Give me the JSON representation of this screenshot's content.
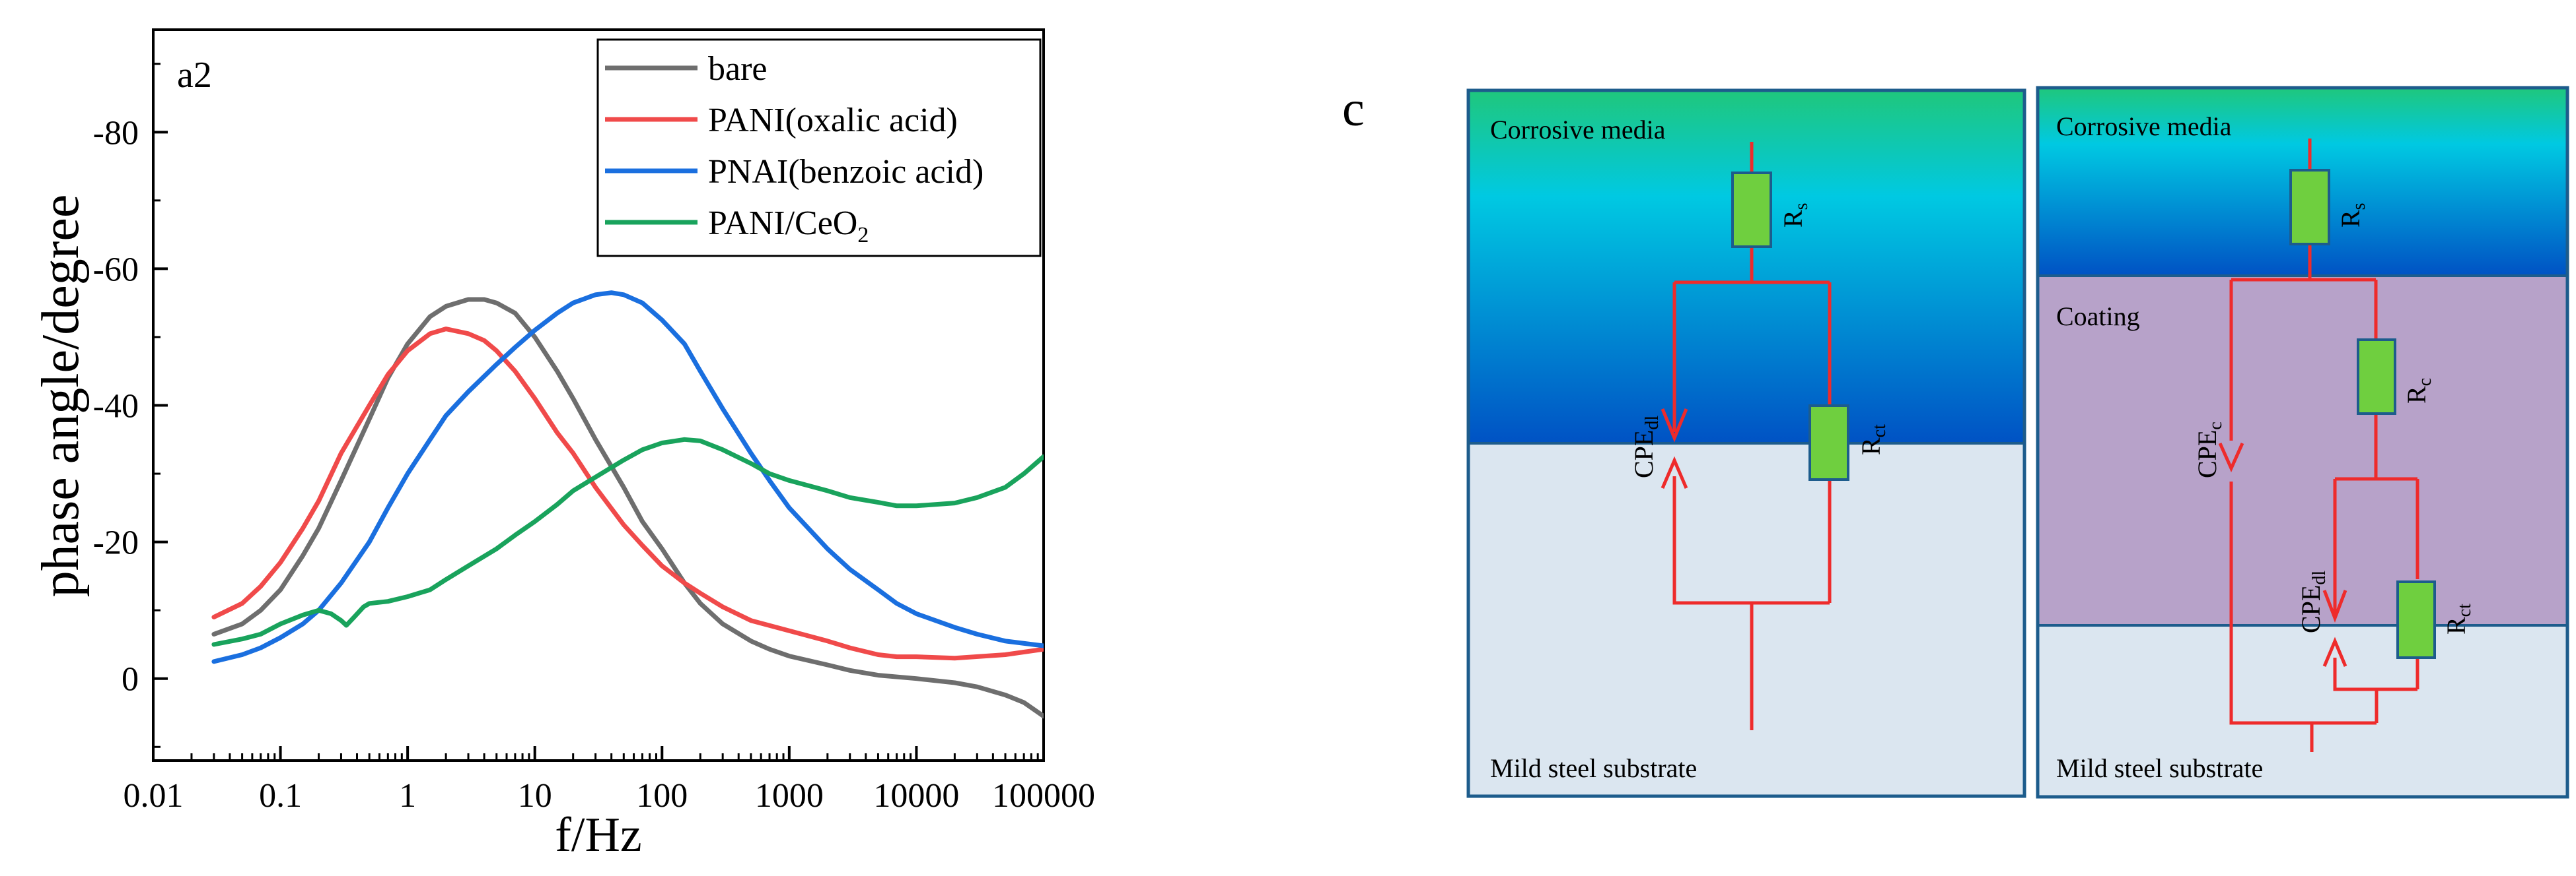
{
  "chart_data": {
    "type": "line",
    "panel_label": "a2",
    "xlabel": "f/Hz",
    "ylabel": "phase angle/degree",
    "xscale": "log",
    "xlim": [
      0.01,
      100000
    ],
    "ylim": [
      12,
      -95
    ],
    "x_ticks": [
      0.01,
      0.1,
      1,
      10,
      100,
      1000,
      10000,
      100000
    ],
    "x_tick_labels": [
      "0.01",
      "0.1",
      "1",
      "10",
      "100",
      "1000",
      "10000",
      "100000"
    ],
    "y_ticks": [
      0,
      -20,
      -40,
      -60,
      -80
    ],
    "y_tick_labels": [
      "0",
      "-20",
      "-40",
      "-60",
      "-80"
    ],
    "legend_position": "top-right",
    "series": [
      {
        "name": "bare",
        "color": "#6e6e6e",
        "points": [
          [
            0.03,
            -6.5
          ],
          [
            0.05,
            -8
          ],
          [
            0.07,
            -10
          ],
          [
            0.1,
            -13
          ],
          [
            0.15,
            -18
          ],
          [
            0.2,
            -22
          ],
          [
            0.3,
            -29
          ],
          [
            0.5,
            -38
          ],
          [
            0.7,
            -44
          ],
          [
            1,
            -49
          ],
          [
            1.5,
            -53
          ],
          [
            2,
            -54.5
          ],
          [
            3,
            -55.5
          ],
          [
            4,
            -55.5
          ],
          [
            5,
            -55
          ],
          [
            7,
            -53.5
          ],
          [
            10,
            -50
          ],
          [
            15,
            -45
          ],
          [
            20,
            -41
          ],
          [
            30,
            -35
          ],
          [
            50,
            -28
          ],
          [
            70,
            -23
          ],
          [
            100,
            -19
          ],
          [
            150,
            -14
          ],
          [
            200,
            -11
          ],
          [
            300,
            -8
          ],
          [
            500,
            -5.5
          ],
          [
            700,
            -4.3
          ],
          [
            1000,
            -3.3
          ],
          [
            2000,
            -2
          ],
          [
            3000,
            -1.2
          ],
          [
            5000,
            -0.5
          ],
          [
            10000,
            0
          ],
          [
            20000,
            0.6
          ],
          [
            30000,
            1.2
          ],
          [
            50000,
            2.4
          ],
          [
            70000,
            3.5
          ],
          [
            100000,
            5.5
          ]
        ]
      },
      {
        "name": "PANI(oxalic acid)",
        "color": "#f04a4a",
        "points": [
          [
            0.03,
            -9
          ],
          [
            0.05,
            -11
          ],
          [
            0.07,
            -13.5
          ],
          [
            0.1,
            -17
          ],
          [
            0.15,
            -22
          ],
          [
            0.2,
            -26
          ],
          [
            0.3,
            -33
          ],
          [
            0.5,
            -40
          ],
          [
            0.7,
            -44.5
          ],
          [
            1,
            -48
          ],
          [
            1.5,
            -50.5
          ],
          [
            2,
            -51.2
          ],
          [
            3,
            -50.5
          ],
          [
            4,
            -49.5
          ],
          [
            5,
            -48
          ],
          [
            7,
            -45
          ],
          [
            10,
            -41
          ],
          [
            15,
            -36
          ],
          [
            20,
            -33
          ],
          [
            30,
            -28
          ],
          [
            50,
            -22.5
          ],
          [
            70,
            -19.5
          ],
          [
            100,
            -16.5
          ],
          [
            150,
            -14
          ],
          [
            200,
            -12.5
          ],
          [
            300,
            -10.5
          ],
          [
            500,
            -8.5
          ],
          [
            1000,
            -7
          ],
          [
            2000,
            -5.5
          ],
          [
            3000,
            -4.5
          ],
          [
            5000,
            -3.5
          ],
          [
            7000,
            -3.2
          ],
          [
            10000,
            -3.2
          ],
          [
            20000,
            -3
          ],
          [
            50000,
            -3.5
          ],
          [
            100000,
            -4.3
          ]
        ]
      },
      {
        "name": "PNAI(benzoic acid)",
        "color": "#1a6fdf",
        "points": [
          [
            0.03,
            -2.5
          ],
          [
            0.05,
            -3.5
          ],
          [
            0.07,
            -4.5
          ],
          [
            0.1,
            -6
          ],
          [
            0.15,
            -8
          ],
          [
            0.2,
            -10
          ],
          [
            0.3,
            -14
          ],
          [
            0.5,
            -20
          ],
          [
            0.7,
            -25
          ],
          [
            1,
            -30
          ],
          [
            1.5,
            -35
          ],
          [
            2,
            -38.5
          ],
          [
            3,
            -42
          ],
          [
            5,
            -46
          ],
          [
            7,
            -48.5
          ],
          [
            10,
            -51
          ],
          [
            15,
            -53.5
          ],
          [
            20,
            -55
          ],
          [
            30,
            -56.2
          ],
          [
            40,
            -56.5
          ],
          [
            50,
            -56.2
          ],
          [
            70,
            -55
          ],
          [
            100,
            -52.5
          ],
          [
            150,
            -49
          ],
          [
            200,
            -45
          ],
          [
            300,
            -39.5
          ],
          [
            500,
            -33
          ],
          [
            700,
            -29
          ],
          [
            1000,
            -25
          ],
          [
            2000,
            -19
          ],
          [
            3000,
            -16
          ],
          [
            5000,
            -13
          ],
          [
            7000,
            -11
          ],
          [
            10000,
            -9.5
          ],
          [
            20000,
            -7.5
          ],
          [
            30000,
            -6.5
          ],
          [
            50000,
            -5.5
          ],
          [
            100000,
            -4.8
          ]
        ]
      },
      {
        "name": "PANI/CeO2",
        "color": "#19a35c",
        "points": [
          [
            0.03,
            -5
          ],
          [
            0.05,
            -5.8
          ],
          [
            0.07,
            -6.5
          ],
          [
            0.1,
            -8
          ],
          [
            0.15,
            -9.3
          ],
          [
            0.2,
            -10
          ],
          [
            0.25,
            -9.5
          ],
          [
            0.3,
            -8.5
          ],
          [
            0.33,
            -7.8
          ],
          [
            0.38,
            -9
          ],
          [
            0.45,
            -10.5
          ],
          [
            0.5,
            -11
          ],
          [
            0.7,
            -11.3
          ],
          [
            1,
            -12
          ],
          [
            1.5,
            -13
          ],
          [
            2,
            -14.5
          ],
          [
            3,
            -16.5
          ],
          [
            5,
            -19
          ],
          [
            7,
            -21
          ],
          [
            10,
            -23
          ],
          [
            15,
            -25.5
          ],
          [
            20,
            -27.5
          ],
          [
            30,
            -29.5
          ],
          [
            50,
            -32
          ],
          [
            70,
            -33.5
          ],
          [
            100,
            -34.5
          ],
          [
            150,
            -35
          ],
          [
            200,
            -34.8
          ],
          [
            300,
            -33.5
          ],
          [
            500,
            -31.5
          ],
          [
            700,
            -30
          ],
          [
            1000,
            -29
          ],
          [
            2000,
            -27.5
          ],
          [
            3000,
            -26.5
          ],
          [
            5000,
            -25.8
          ],
          [
            7000,
            -25.3
          ],
          [
            10000,
            -25.3
          ],
          [
            20000,
            -25.7
          ],
          [
            30000,
            -26.5
          ],
          [
            50000,
            -28
          ],
          [
            70000,
            -30
          ],
          [
            100000,
            -32.5
          ]
        ]
      }
    ]
  },
  "legend": {
    "items": [
      {
        "label": "bare"
      },
      {
        "label": "PANI(oxalic acid)"
      },
      {
        "label": "PNAI(benzoic acid)"
      },
      {
        "label_main": "PANI/CeO",
        "label_sub": "2"
      }
    ]
  },
  "diagram": {
    "panel_label": "c",
    "colors": {
      "media_top": "#1fc77c",
      "media_mid": "#00c9e2",
      "media_bottom": "#0052c4",
      "substrate": "#dbe6f0",
      "coating": "#b7a2c9",
      "border": "#1d5c8c",
      "wire": "#ee2b2b",
      "resistor": "#6fcf3f"
    },
    "left": {
      "media_label": "Corrosive media",
      "substrate_label": "Mild steel substrate",
      "rs": {
        "main": "R",
        "sub": "s"
      },
      "cpe_dl": {
        "main": "CPE",
        "sub": "dl"
      },
      "rct": {
        "main": "R",
        "sub": "ct"
      }
    },
    "right": {
      "media_label": "Corrosive media",
      "coating_label": "Coating",
      "substrate_label": "Mild steel substrate",
      "rs": {
        "main": "R",
        "sub": "s"
      },
      "cpe_c": {
        "main": "CPE",
        "sub": "c"
      },
      "rc": {
        "main": "R",
        "sub": "c"
      },
      "cpe_dl": {
        "main": "CPE",
        "sub": "dl"
      },
      "rct": {
        "main": "R",
        "sub": "ct"
      }
    }
  }
}
